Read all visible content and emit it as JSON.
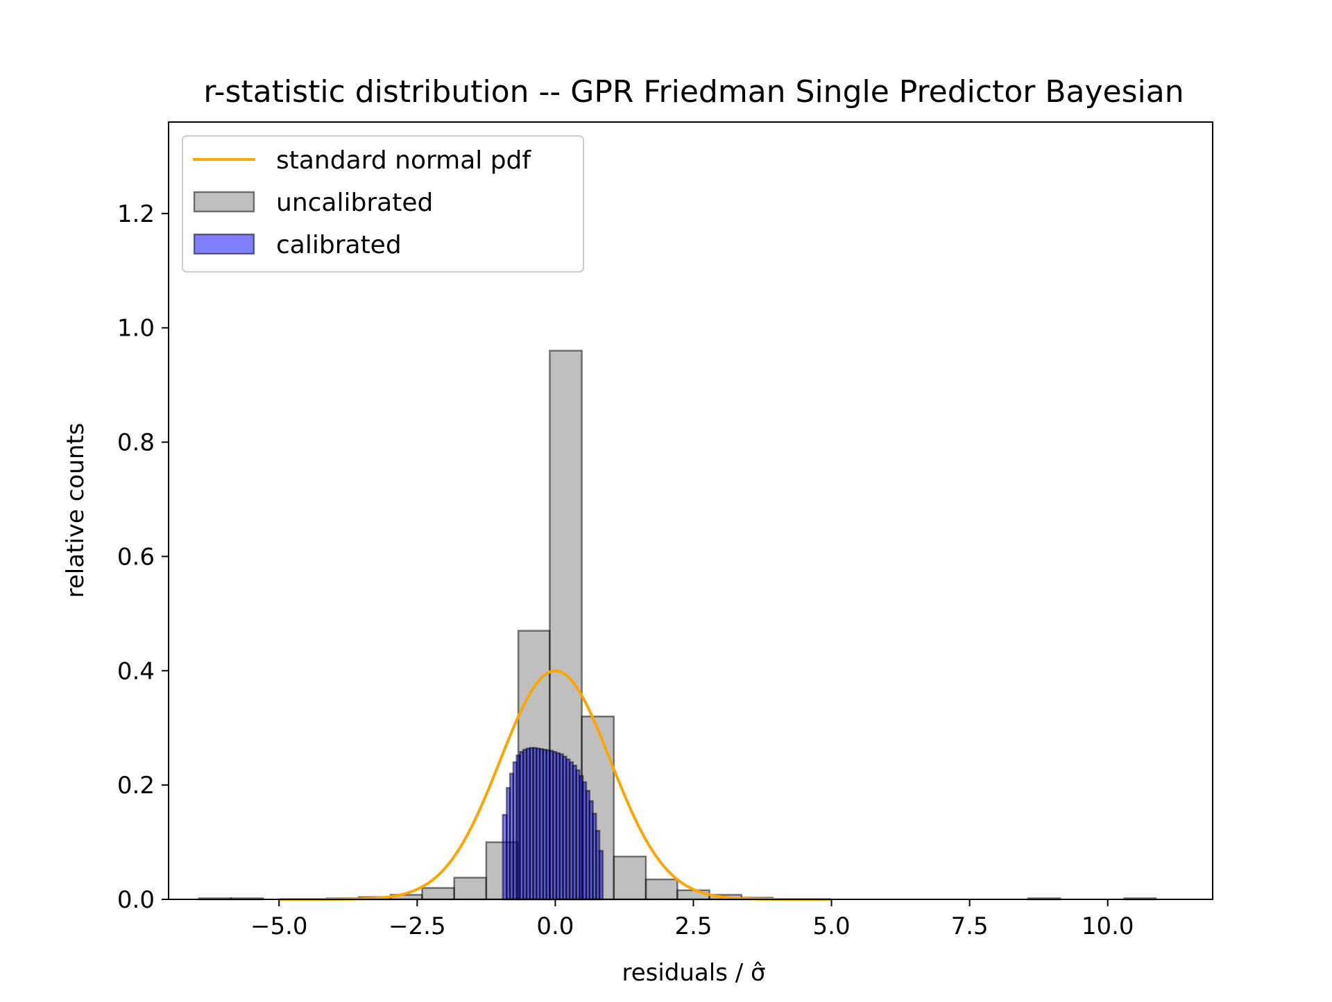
{
  "chart_data": {
    "type": "bar",
    "title": "r-statistic distribution -- GPR Friedman Single Predictor Bayesian",
    "xlabel": "residuals / σ̂",
    "ylabel": "relative counts",
    "xlim": [
      -7.0,
      11.9
    ],
    "ylim": [
      0.0,
      1.36
    ],
    "x_ticks": [
      {
        "value": -5.0,
        "label": "−5.0"
      },
      {
        "value": -2.5,
        "label": "−2.5"
      },
      {
        "value": 0.0,
        "label": "0.0"
      },
      {
        "value": 2.5,
        "label": "2.5"
      },
      {
        "value": 5.0,
        "label": "5.0"
      },
      {
        "value": 7.5,
        "label": "7.5"
      },
      {
        "value": 10.0,
        "label": "10.0"
      }
    ],
    "y_ticks": [
      {
        "value": 0.0,
        "label": "0.0"
      },
      {
        "value": 0.2,
        "label": "0.2"
      },
      {
        "value": 0.4,
        "label": "0.4"
      },
      {
        "value": 0.6,
        "label": "0.6"
      },
      {
        "value": 0.8,
        "label": "0.8"
      },
      {
        "value": 1.0,
        "label": "1.0"
      },
      {
        "value": 1.2,
        "label": "1.2"
      }
    ],
    "grid": false,
    "legend_position": "upper-left",
    "series": [
      {
        "name": "uncalibrated",
        "kind": "histogram",
        "color": "#808080",
        "bin_edges": [
          -6.45,
          -5.87,
          -5.29,
          -4.72,
          -4.14,
          -3.56,
          -2.98,
          -2.41,
          -1.83,
          -1.25,
          -0.67,
          -0.1,
          0.48,
          1.06,
          1.64,
          2.21,
          2.79,
          3.37,
          3.94,
          4.52,
          5.1,
          5.68,
          6.25,
          6.83,
          7.41,
          7.99,
          8.56,
          9.14,
          9.72,
          10.3,
          10.87
        ],
        "values": [
          0.002,
          0.002,
          0.0,
          0.0,
          0.002,
          0.004,
          0.008,
          0.02,
          0.038,
          0.1,
          0.47,
          0.96,
          0.32,
          0.075,
          0.035,
          0.016,
          0.008,
          0.003,
          0.0,
          0.0,
          0.0,
          0.0,
          0.0,
          0.0,
          0.0,
          0.0,
          0.002,
          0.0,
          0.0,
          0.002
        ]
      },
      {
        "name": "calibrated",
        "kind": "histogram",
        "color": "#0000ff",
        "bin_edges": [
          -0.95,
          -0.88,
          -0.82,
          -0.76,
          -0.7,
          -0.64,
          -0.58,
          -0.52,
          -0.46,
          -0.4,
          -0.34,
          -0.28,
          -0.22,
          -0.16,
          -0.1,
          -0.04,
          0.02,
          0.08,
          0.14,
          0.2,
          0.26,
          0.32,
          0.38,
          0.44,
          0.5,
          0.56,
          0.62,
          0.68,
          0.74,
          0.8,
          0.86
        ],
        "values": [
          0.148,
          0.195,
          0.22,
          0.24,
          0.252,
          0.258,
          0.262,
          0.264,
          0.265,
          0.265,
          0.264,
          0.263,
          0.262,
          0.261,
          0.26,
          0.258,
          0.256,
          0.254,
          0.25,
          0.245,
          0.24,
          0.234,
          0.226,
          0.216,
          0.205,
          0.19,
          0.172,
          0.15,
          0.12,
          0.085
        ]
      },
      {
        "name": "standard normal pdf",
        "kind": "line",
        "color": "#ffa500",
        "x_range": [
          -5.0,
          5.0
        ],
        "peak": 0.4
      }
    ],
    "legend": [
      {
        "name": "standard normal pdf",
        "type": "line",
        "color": "#ffa500"
      },
      {
        "name": "uncalibrated",
        "type": "patch",
        "color": "#808080"
      },
      {
        "name": "calibrated",
        "type": "patch",
        "color": "#0000ff"
      }
    ]
  }
}
